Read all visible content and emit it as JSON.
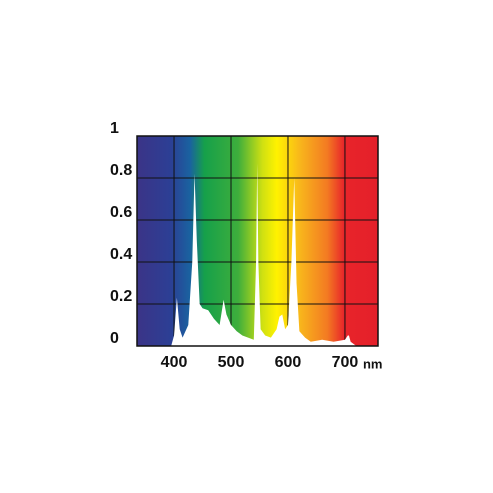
{
  "chart_data": {
    "type": "area",
    "x": [
      395,
      400,
      405,
      410,
      415,
      425,
      432,
      436,
      440,
      445,
      450,
      460,
      470,
      480,
      487,
      492,
      500,
      510,
      520,
      530,
      540,
      544,
      546,
      548,
      552,
      560,
      570,
      580,
      585,
      590,
      595,
      600,
      606,
      611,
      615,
      620,
      630,
      640,
      660,
      680,
      700,
      705,
      707,
      710,
      720
    ],
    "values": [
      0,
      0.05,
      0.23,
      0.08,
      0.04,
      0.1,
      0.4,
      0.82,
      0.5,
      0.2,
      0.18,
      0.17,
      0.13,
      0.1,
      0.22,
      0.15,
      0.1,
      0.07,
      0.05,
      0.04,
      0.03,
      0.4,
      0.87,
      0.4,
      0.08,
      0.05,
      0.04,
      0.08,
      0.14,
      0.15,
      0.08,
      0.1,
      0.4,
      0.8,
      0.3,
      0.07,
      0.04,
      0.02,
      0.03,
      0.02,
      0.03,
      0.05,
      0.05,
      0.02,
      0
    ],
    "color": "#ffffff",
    "xlabel": "nm",
    "xlim": [
      335,
      758
    ],
    "xticks": [
      400,
      500,
      600,
      700
    ],
    "ylim": [
      0,
      1
    ],
    "yticks": [
      0,
      0.2,
      0.4,
      0.6,
      0.8,
      1
    ],
    "grid": true
  }
}
